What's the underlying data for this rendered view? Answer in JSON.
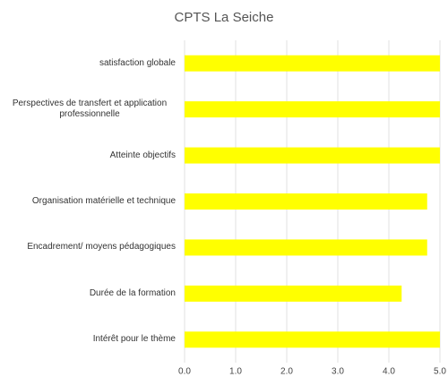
{
  "chart_data": {
    "type": "bar",
    "orientation": "horizontal",
    "title": "CPTS La Seiche",
    "categories": [
      "satisfaction globale",
      "Perspectives de transfert et application professionnelle",
      "Atteinte objectifs",
      "Organisation matérielle et technique",
      "Encadrement/ moyens pédagogiques",
      "Durée de la formation",
      "Intérêt pour le thème"
    ],
    "values": [
      5.0,
      5.0,
      5.0,
      4.75,
      4.75,
      4.25,
      5.0
    ],
    "color": "#ffff00",
    "xlim": [
      0,
      5
    ],
    "xticks": [
      {
        "value": 0,
        "label": "0.0"
      },
      {
        "value": 1,
        "label": "1.0"
      },
      {
        "value": 2,
        "label": "2.0"
      },
      {
        "value": 3,
        "label": "3.0"
      },
      {
        "value": 4,
        "label": "4.0"
      },
      {
        "value": 5,
        "label": "5.0"
      }
    ],
    "grid": true
  }
}
